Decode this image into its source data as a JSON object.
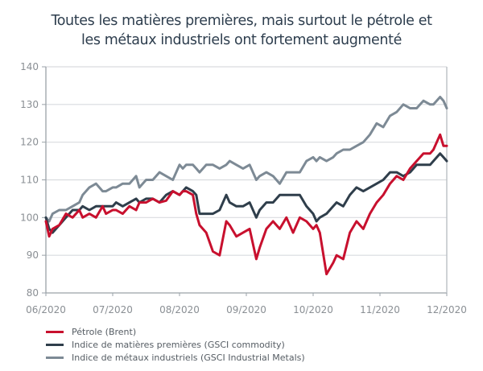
{
  "chart_data": {
    "type": "line",
    "title": "Toutes les matières premières, mais surtout le pétrole et les métaux industriels ont fortement augmenté",
    "title_lines": [
      "Toutes les matières premières, mais surtout le pétrole et",
      "les métaux industriels ont fortement augmenté"
    ],
    "xlabel": "",
    "ylabel": "",
    "ylim": [
      80,
      140
    ],
    "yticks": [
      80,
      90,
      100,
      110,
      120,
      130,
      140
    ],
    "xlim": [
      0,
      6
    ],
    "xtick_labels": [
      "06/2020",
      "07/2020",
      "08/2020",
      "09/2020",
      "10/2020",
      "11/2020",
      "12/2020"
    ],
    "x_unit": "months since 06/2020",
    "grid": "horizontal",
    "legend_position": "bottom-left",
    "series": [
      {
        "name": "Pétrole (Brent)",
        "color": "#c8102e",
        "x": [
          0,
          0.05,
          0.1,
          0.2,
          0.3,
          0.4,
          0.5,
          0.55,
          0.65,
          0.75,
          0.85,
          0.9,
          1.0,
          1.05,
          1.15,
          1.25,
          1.35,
          1.4,
          1.5,
          1.6,
          1.7,
          1.8,
          1.9,
          2.0,
          2.05,
          2.1,
          2.2,
          2.25,
          2.3,
          2.4,
          2.5,
          2.6,
          2.7,
          2.75,
          2.85,
          2.95,
          3.05,
          3.15,
          3.2,
          3.3,
          3.4,
          3.5,
          3.6,
          3.7,
          3.8,
          3.9,
          4.0,
          4.05,
          4.1,
          4.2,
          4.3,
          4.35,
          4.45,
          4.55,
          4.65,
          4.75,
          4.85,
          4.95,
          5.05,
          5.15,
          5.25,
          5.35,
          5.45,
          5.55,
          5.65,
          5.75,
          5.8,
          5.9,
          5.95,
          6.0
        ],
        "values": [
          99,
          95,
          97,
          98,
          101,
          100,
          102,
          100,
          101,
          100,
          103,
          101,
          102,
          102,
          101,
          103,
          102,
          104,
          104,
          105,
          104,
          104.5,
          107,
          106,
          107,
          107,
          106,
          101,
          98,
          96,
          91,
          90,
          99,
          98,
          95,
          96,
          97,
          89,
          92,
          97,
          99,
          97,
          100,
          96,
          100,
          99,
          97,
          98,
          96,
          85,
          88,
          90,
          89,
          96,
          99,
          97,
          101,
          104,
          106,
          109,
          111,
          110,
          113,
          115,
          117,
          117,
          118,
          122,
          119,
          119
        ]
      },
      {
        "name": "Indice de matières premières (GSCI commodity)",
        "color": "#2f3e4b",
        "x": [
          0,
          0.05,
          0.1,
          0.2,
          0.3,
          0.4,
          0.5,
          0.55,
          0.65,
          0.75,
          0.85,
          0.9,
          1.0,
          1.05,
          1.15,
          1.25,
          1.35,
          1.4,
          1.5,
          1.6,
          1.7,
          1.8,
          1.9,
          2.0,
          2.05,
          2.1,
          2.2,
          2.25,
          2.3,
          2.4,
          2.5,
          2.6,
          2.7,
          2.75,
          2.85,
          2.95,
          3.05,
          3.15,
          3.2,
          3.3,
          3.4,
          3.5,
          3.6,
          3.7,
          3.8,
          3.9,
          4.0,
          4.05,
          4.1,
          4.2,
          4.3,
          4.35,
          4.45,
          4.55,
          4.65,
          4.75,
          4.85,
          4.95,
          5.05,
          5.15,
          5.25,
          5.35,
          5.45,
          5.55,
          5.65,
          5.75,
          5.8,
          5.9,
          5.95,
          6.0
        ],
        "values": [
          100,
          97,
          96,
          98,
          100,
          102,
          102,
          103,
          102,
          103,
          103,
          103,
          103,
          104,
          103,
          104,
          105,
          104,
          105,
          105,
          104,
          106,
          107,
          106,
          107,
          108,
          107,
          106,
          101,
          101,
          101,
          102,
          106,
          104,
          103,
          103,
          104,
          100,
          102,
          104,
          104,
          106,
          106,
          106,
          106,
          103,
          101,
          99,
          100,
          101,
          103,
          104,
          103,
          106,
          108,
          107,
          108,
          109,
          110,
          112,
          112,
          111,
          112,
          114,
          114,
          114,
          115,
          117,
          116,
          115
        ]
      },
      {
        "name": "Indice de métaux industriels (GSCI Industrial Metals)",
        "color": "#7d8a95",
        "x": [
          0,
          0.05,
          0.1,
          0.2,
          0.3,
          0.4,
          0.5,
          0.55,
          0.65,
          0.75,
          0.85,
          0.9,
          1.0,
          1.05,
          1.15,
          1.25,
          1.35,
          1.4,
          1.5,
          1.6,
          1.7,
          1.8,
          1.9,
          2.0,
          2.05,
          2.1,
          2.2,
          2.25,
          2.3,
          2.4,
          2.5,
          2.6,
          2.7,
          2.75,
          2.85,
          2.95,
          3.05,
          3.15,
          3.2,
          3.3,
          3.4,
          3.5,
          3.6,
          3.7,
          3.8,
          3.9,
          4.0,
          4.05,
          4.1,
          4.2,
          4.3,
          4.35,
          4.45,
          4.55,
          4.65,
          4.75,
          4.85,
          4.95,
          5.05,
          5.15,
          5.25,
          5.35,
          5.45,
          5.55,
          5.65,
          5.75,
          5.8,
          5.9,
          5.95,
          6.0
        ],
        "values": [
          100,
          99,
          101,
          102,
          102,
          103,
          104,
          106,
          108,
          109,
          107,
          107,
          108,
          108,
          109,
          109,
          111,
          108,
          110,
          110,
          112,
          111,
          110,
          114,
          113,
          114,
          114,
          113,
          112,
          114,
          114,
          113,
          114,
          115,
          114,
          113,
          114,
          110,
          111,
          112,
          111,
          109,
          112,
          112,
          112,
          115,
          116,
          115,
          116,
          115,
          116,
          117,
          118,
          118,
          119,
          120,
          122,
          125,
          124,
          127,
          128,
          130,
          129,
          129,
          131,
          130,
          130,
          132,
          131,
          129
        ]
      }
    ]
  },
  "legend": {
    "items": [
      {
        "label": "Pétrole (Brent)",
        "color": "#c8102e"
      },
      {
        "label": "Indice de matières premières (GSCI commodity)",
        "color": "#2f3e4b"
      },
      {
        "label": "Indice de métaux industriels (GSCI Industrial Metals)",
        "color": "#7d8a95"
      }
    ]
  }
}
